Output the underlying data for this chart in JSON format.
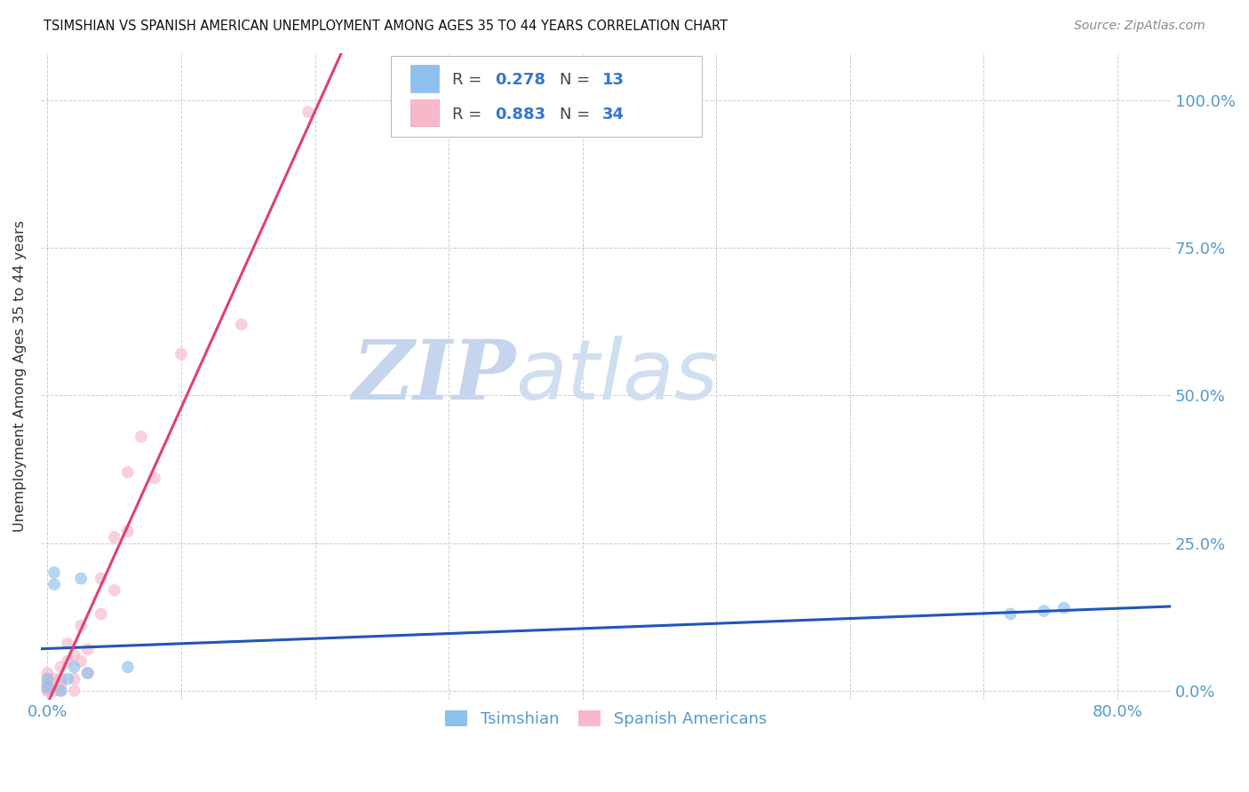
{
  "title": "TSIMSHIAN VS SPANISH AMERICAN UNEMPLOYMENT AMONG AGES 35 TO 44 YEARS CORRELATION CHART",
  "source": "Source: ZipAtlas.com",
  "ylabel": "Unemployment Among Ages 35 to 44 years",
  "xlim": [
    -0.005,
    0.84
  ],
  "ylim": [
    -0.015,
    1.08
  ],
  "xticks": [
    0.0,
    0.1,
    0.2,
    0.3,
    0.4,
    0.5,
    0.6,
    0.7,
    0.8
  ],
  "xtick_labels": [
    "0.0%",
    "",
    "",
    "",
    "",
    "",
    "",
    "",
    "80.0%"
  ],
  "yticks_right": [
    0.0,
    0.25,
    0.5,
    0.75,
    1.0
  ],
  "ytick_labels_right": [
    "0.0%",
    "25.0%",
    "50.0%",
    "75.0%",
    "100.0%"
  ],
  "legend_r1": "0.278",
  "legend_n1": "13",
  "legend_r2": "0.883",
  "legend_n2": "34",
  "tsimshian_x": [
    0.0,
    0.0,
    0.005,
    0.005,
    0.01,
    0.015,
    0.02,
    0.025,
    0.03,
    0.06,
    0.72,
    0.745,
    0.76
  ],
  "tsimshian_y": [
    0.005,
    0.02,
    0.18,
    0.2,
    0.0,
    0.02,
    0.04,
    0.19,
    0.03,
    0.04,
    0.13,
    0.135,
    0.14
  ],
  "spanish_x": [
    0.0,
    0.0,
    0.0,
    0.0,
    0.0,
    0.0,
    0.0,
    0.005,
    0.005,
    0.005,
    0.01,
    0.01,
    0.01,
    0.01,
    0.015,
    0.015,
    0.02,
    0.02,
    0.02,
    0.025,
    0.025,
    0.03,
    0.03,
    0.04,
    0.04,
    0.05,
    0.05,
    0.06,
    0.06,
    0.07,
    0.08,
    0.1,
    0.145,
    0.195
  ],
  "spanish_y": [
    0.0,
    0.0,
    0.005,
    0.01,
    0.01,
    0.02,
    0.03,
    0.0,
    0.01,
    0.02,
    0.0,
    0.01,
    0.02,
    0.04,
    0.05,
    0.08,
    0.0,
    0.02,
    0.06,
    0.05,
    0.11,
    0.03,
    0.07,
    0.13,
    0.19,
    0.17,
    0.26,
    0.27,
    0.37,
    0.43,
    0.36,
    0.57,
    0.62,
    0.98
  ],
  "blue_color": "#8dc0ed",
  "pink_color": "#f7b8ca",
  "blue_line_color": "#2255bb",
  "pink_line_color": "#e04070",
  "watermark_zip": "ZIP",
  "watermark_atlas": "atlas",
  "watermark_color_zip": "#c5d5ed",
  "watermark_color_atlas": "#d0dff0",
  "marker_size": 100,
  "marker_alpha": 0.65
}
